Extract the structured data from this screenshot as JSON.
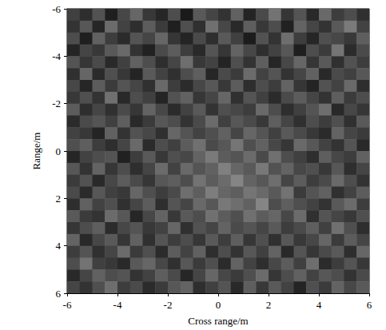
{
  "chart_data": {
    "type": "heatmap",
    "x_label": "Cross range/m",
    "y_label": "Range/m",
    "xlim": [
      -6,
      6
    ],
    "ylim": [
      6,
      -6
    ],
    "xticks": [
      -6,
      -4,
      -2,
      0,
      2,
      4,
      6
    ],
    "yticks": [
      -6,
      -4,
      -2,
      0,
      2,
      4,
      6
    ],
    "grid": false,
    "value_range": [
      0,
      1
    ],
    "x": [
      -5.75,
      -5.25,
      -4.75,
      -4.25,
      -3.75,
      -3.25,
      -2.75,
      -2.25,
      -1.75,
      -1.25,
      -0.75,
      -0.25,
      0.25,
      0.75,
      1.25,
      1.75,
      2.25,
      2.75,
      3.25,
      3.75,
      4.25,
      4.75,
      5.25,
      5.75
    ],
    "y": [
      -5.75,
      -5.25,
      -4.75,
      -4.25,
      -3.75,
      -3.25,
      -2.75,
      -2.25,
      -1.75,
      -1.25,
      -0.75,
      -0.25,
      0.25,
      0.75,
      1.25,
      1.75,
      2.25,
      2.75,
      3.25,
      3.75,
      4.25,
      4.75,
      5.25,
      5.75
    ],
    "values": [
      [
        0.25,
        0.18,
        0.32,
        0.12,
        0.28,
        0.4,
        0.22,
        0.15,
        0.3,
        0.1,
        0.35,
        0.27,
        0.2,
        0.38,
        0.14,
        0.29,
        0.45,
        0.21,
        0.33,
        0.16,
        0.41,
        0.24,
        0.3,
        0.19
      ],
      [
        0.2,
        0.34,
        0.15,
        0.42,
        0.26,
        0.18,
        0.36,
        0.23,
        0.12,
        0.31,
        0.19,
        0.44,
        0.28,
        0.16,
        0.37,
        0.22,
        0.3,
        0.13,
        0.39,
        0.27,
        0.2,
        0.35,
        0.48,
        0.26
      ],
      [
        0.3,
        0.12,
        0.38,
        0.24,
        0.17,
        0.33,
        0.27,
        0.4,
        0.21,
        0.14,
        0.29,
        0.18,
        0.35,
        0.25,
        0.11,
        0.32,
        0.2,
        0.43,
        0.24,
        0.15,
        0.31,
        0.28,
        0.22,
        0.37
      ],
      [
        0.14,
        0.27,
        0.22,
        0.35,
        0.41,
        0.2,
        0.13,
        0.29,
        0.36,
        0.24,
        0.16,
        0.33,
        0.21,
        0.39,
        0.28,
        0.18,
        0.26,
        0.34,
        0.12,
        0.3,
        0.23,
        0.46,
        0.17,
        0.29
      ],
      [
        0.33,
        0.21,
        0.29,
        0.16,
        0.25,
        0.38,
        0.3,
        0.18,
        0.27,
        0.43,
        0.22,
        0.26,
        0.14,
        0.31,
        0.2,
        0.37,
        0.15,
        0.28,
        0.4,
        0.21,
        0.35,
        0.19,
        0.32,
        0.24
      ],
      [
        0.19,
        0.4,
        0.17,
        0.31,
        0.22,
        0.14,
        0.35,
        0.26,
        0.19,
        0.3,
        0.37,
        0.15,
        0.29,
        0.23,
        0.42,
        0.26,
        0.33,
        0.2,
        0.27,
        0.38,
        0.16,
        0.29,
        0.25,
        0.34
      ],
      [
        0.28,
        0.15,
        0.36,
        0.23,
        0.33,
        0.27,
        0.19,
        0.41,
        0.24,
        0.17,
        0.28,
        0.34,
        0.22,
        0.36,
        0.18,
        0.3,
        0.24,
        0.39,
        0.21,
        0.14,
        0.32,
        0.26,
        0.41,
        0.18
      ],
      [
        0.22,
        0.31,
        0.2,
        0.44,
        0.16,
        0.3,
        0.25,
        0.14,
        0.32,
        0.38,
        0.21,
        0.27,
        0.4,
        0.19,
        0.33,
        0.25,
        0.17,
        0.29,
        0.36,
        0.27,
        0.2,
        0.37,
        0.23,
        0.3
      ],
      [
        0.36,
        0.18,
        0.27,
        0.19,
        0.29,
        0.21,
        0.39,
        0.28,
        0.17,
        0.26,
        0.35,
        0.2,
        0.31,
        0.28,
        0.24,
        0.41,
        0.3,
        0.18,
        0.25,
        0.33,
        0.43,
        0.16,
        0.28,
        0.21
      ],
      [
        0.17,
        0.29,
        0.33,
        0.25,
        0.37,
        0.16,
        0.23,
        0.34,
        0.3,
        0.2,
        0.29,
        0.42,
        0.25,
        0.34,
        0.29,
        0.22,
        0.37,
        0.27,
        0.19,
        0.3,
        0.24,
        0.31,
        0.19,
        0.35
      ],
      [
        0.26,
        0.22,
        0.14,
        0.38,
        0.2,
        0.32,
        0.28,
        0.19,
        0.4,
        0.33,
        0.26,
        0.31,
        0.38,
        0.27,
        0.4,
        0.33,
        0.25,
        0.35,
        0.29,
        0.22,
        0.17,
        0.39,
        0.27,
        0.23
      ],
      [
        0.31,
        0.37,
        0.24,
        0.18,
        0.27,
        0.41,
        0.17,
        0.3,
        0.25,
        0.36,
        0.44,
        0.29,
        0.34,
        0.46,
        0.31,
        0.38,
        0.28,
        0.21,
        0.41,
        0.34,
        0.26,
        0.2,
        0.33,
        0.16
      ],
      [
        0.15,
        0.26,
        0.3,
        0.33,
        0.13,
        0.24,
        0.35,
        0.22,
        0.31,
        0.28,
        0.39,
        0.48,
        0.36,
        0.33,
        0.42,
        0.29,
        0.44,
        0.3,
        0.25,
        0.18,
        0.37,
        0.28,
        0.24,
        0.38
      ],
      [
        0.34,
        0.2,
        0.39,
        0.21,
        0.3,
        0.18,
        0.27,
        0.42,
        0.26,
        0.41,
        0.33,
        0.38,
        0.5,
        0.4,
        0.35,
        0.47,
        0.32,
        0.39,
        0.28,
        0.31,
        0.22,
        0.34,
        0.18,
        0.27
      ],
      [
        0.23,
        0.32,
        0.16,
        0.28,
        0.36,
        0.29,
        0.21,
        0.34,
        0.37,
        0.3,
        0.45,
        0.36,
        0.42,
        0.52,
        0.39,
        0.34,
        0.43,
        0.27,
        0.36,
        0.24,
        0.29,
        0.41,
        0.3,
        0.2
      ],
      [
        0.29,
        0.17,
        0.34,
        0.25,
        0.22,
        0.4,
        0.31,
        0.24,
        0.29,
        0.43,
        0.37,
        0.49,
        0.4,
        0.37,
        0.46,
        0.41,
        0.35,
        0.45,
        0.23,
        0.33,
        0.38,
        0.19,
        0.26,
        0.36
      ],
      [
        0.18,
        0.38,
        0.26,
        0.31,
        0.19,
        0.27,
        0.36,
        0.18,
        0.33,
        0.27,
        0.41,
        0.34,
        0.47,
        0.43,
        0.38,
        0.52,
        0.3,
        0.37,
        0.31,
        0.26,
        0.2,
        0.35,
        0.42,
        0.24
      ],
      [
        0.35,
        0.23,
        0.2,
        0.42,
        0.34,
        0.15,
        0.28,
        0.39,
        0.22,
        0.35,
        0.3,
        0.44,
        0.36,
        0.31,
        0.44,
        0.36,
        0.4,
        0.28,
        0.42,
        0.19,
        0.33,
        0.27,
        0.22,
        0.31
      ],
      [
        0.21,
        0.3,
        0.37,
        0.17,
        0.28,
        0.33,
        0.22,
        0.26,
        0.4,
        0.19,
        0.32,
        0.27,
        0.39,
        0.29,
        0.33,
        0.27,
        0.35,
        0.24,
        0.29,
        0.37,
        0.25,
        0.44,
        0.31,
        0.18
      ],
      [
        0.39,
        0.16,
        0.28,
        0.35,
        0.21,
        0.38,
        0.19,
        0.33,
        0.24,
        0.3,
        0.21,
        0.35,
        0.24,
        0.37,
        0.21,
        0.31,
        0.19,
        0.34,
        0.22,
        0.28,
        0.4,
        0.23,
        0.36,
        0.27
      ],
      [
        0.24,
        0.33,
        0.19,
        0.27,
        0.42,
        0.23,
        0.31,
        0.17,
        0.36,
        0.26,
        0.38,
        0.18,
        0.3,
        0.2,
        0.34,
        0.25,
        0.39,
        0.16,
        0.33,
        0.21,
        0.29,
        0.35,
        0.18,
        0.4
      ],
      [
        0.3,
        0.45,
        0.25,
        0.22,
        0.16,
        0.35,
        0.4,
        0.28,
        0.19,
        0.34,
        0.23,
        0.31,
        0.17,
        0.39,
        0.26,
        0.18,
        0.28,
        0.36,
        0.25,
        0.43,
        0.17,
        0.24,
        0.33,
        0.22
      ],
      [
        0.16,
        0.27,
        0.38,
        0.3,
        0.33,
        0.2,
        0.26,
        0.37,
        0.29,
        0.15,
        0.27,
        0.4,
        0.28,
        0.23,
        0.31,
        0.42,
        0.21,
        0.3,
        0.38,
        0.26,
        0.34,
        0.3,
        0.2,
        0.29
      ],
      [
        0.27,
        0.2,
        0.31,
        0.43,
        0.24,
        0.29,
        0.17,
        0.23,
        0.34,
        0.39,
        0.18,
        0.25,
        0.33,
        0.16,
        0.37,
        0.22,
        0.35,
        0.26,
        0.14,
        0.31,
        0.23,
        0.39,
        0.28,
        0.35
      ]
    ]
  }
}
